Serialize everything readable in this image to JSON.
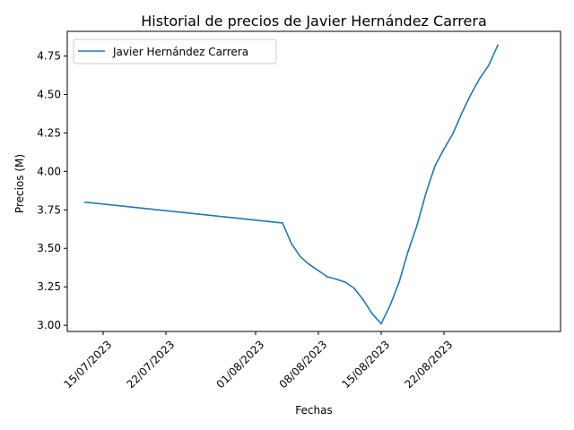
{
  "chart_data": {
    "type": "line",
    "title": "Historial de precios de Javier Hernández Carrera",
    "xlabel": "Fechas",
    "ylabel": "Precios (M)",
    "ylim": [
      2.96,
      4.91
    ],
    "xlim": [
      "2023-07-11",
      "2023-09-04"
    ],
    "grid": false,
    "legend_position": "top-left",
    "x_ticks": [
      {
        "date": "2023-07-15",
        "label": "15/07/2023"
      },
      {
        "date": "2023-07-22",
        "label": "22/07/2023"
      },
      {
        "date": "2023-08-01",
        "label": "01/08/2023"
      },
      {
        "date": "2023-08-08",
        "label": "08/08/2023"
      },
      {
        "date": "2023-08-15",
        "label": "15/08/2023"
      },
      {
        "date": "2023-08-22",
        "label": "22/08/2023"
      }
    ],
    "y_ticks": [
      "3.00",
      "3.25",
      "3.50",
      "3.75",
      "4.00",
      "4.25",
      "4.50",
      "4.75"
    ],
    "series": [
      {
        "name": "Javier Hernández Carrera",
        "color": "#1f77b4",
        "points": [
          {
            "x": "2023-07-13",
            "y": 3.8
          },
          {
            "x": "2023-08-04",
            "y": 3.665
          },
          {
            "x": "2023-08-05",
            "y": 3.53
          },
          {
            "x": "2023-08-06",
            "y": 3.445
          },
          {
            "x": "2023-08-07",
            "y": 3.395
          },
          {
            "x": "2023-08-08",
            "y": 3.355
          },
          {
            "x": "2023-08-09",
            "y": 3.315
          },
          {
            "x": "2023-08-10",
            "y": 3.3
          },
          {
            "x": "2023-08-11",
            "y": 3.28
          },
          {
            "x": "2023-08-12",
            "y": 3.24
          },
          {
            "x": "2023-08-13",
            "y": 3.165
          },
          {
            "x": "2023-08-14",
            "y": 3.075
          },
          {
            "x": "2023-08-15",
            "y": 3.01
          },
          {
            "x": "2023-08-16",
            "y": 3.13
          },
          {
            "x": "2023-08-17",
            "y": 3.28
          },
          {
            "x": "2023-08-18",
            "y": 3.48
          },
          {
            "x": "2023-08-19",
            "y": 3.65
          },
          {
            "x": "2023-08-20",
            "y": 3.86
          },
          {
            "x": "2023-08-21",
            "y": 4.035
          },
          {
            "x": "2023-08-22",
            "y": 4.145
          },
          {
            "x": "2023-08-23",
            "y": 4.245
          },
          {
            "x": "2023-08-24",
            "y": 4.38
          },
          {
            "x": "2023-08-25",
            "y": 4.5
          },
          {
            "x": "2023-08-26",
            "y": 4.605
          },
          {
            "x": "2023-08-27",
            "y": 4.69
          },
          {
            "x": "2023-08-28",
            "y": 4.82
          }
        ]
      }
    ]
  }
}
